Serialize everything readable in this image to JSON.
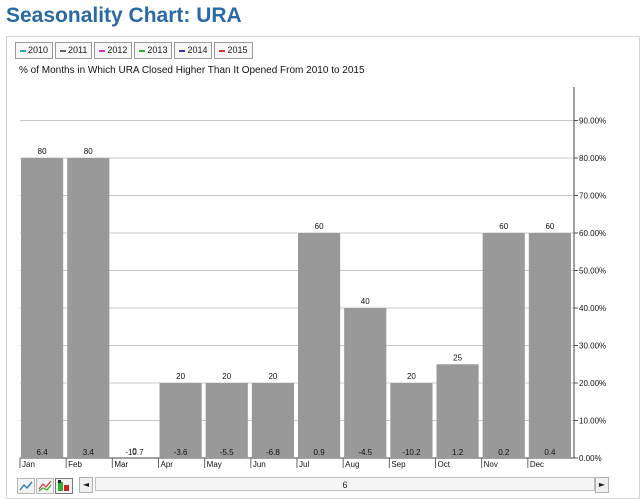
{
  "page": {
    "title": "Seasonality Chart: URA"
  },
  "legend": [
    {
      "label": "2010",
      "color": "#2aa8a8"
    },
    {
      "label": "2011",
      "color": "#666666"
    },
    {
      "label": "2012",
      "color": "#cc33cc"
    },
    {
      "label": "2013",
      "color": "#33aa33"
    },
    {
      "label": "2014",
      "color": "#3333aa"
    },
    {
      "label": "2015",
      "color": "#cc3333"
    }
  ],
  "chart_data": {
    "type": "bar",
    "subtitle": "% of Months in Which URA Closed Higher Than It Opened From 2010 to 2015",
    "categories": [
      "Jan",
      "Feb",
      "Mar",
      "Apr",
      "May",
      "Jun",
      "Jul",
      "Aug",
      "Sep",
      "Oct",
      "Nov",
      "Dec"
    ],
    "values": [
      80,
      80,
      0,
      20,
      20,
      20,
      60,
      40,
      20,
      25,
      60,
      60
    ],
    "value_labels": [
      "80",
      "80",
      "0",
      "20",
      "20",
      "20",
      "60",
      "40",
      "20",
      "25",
      "60",
      "60"
    ],
    "bottom_labels": [
      "6.4",
      "3.4",
      "-10.7",
      "-3.6",
      "-5.5",
      "-6.8",
      "0.9",
      "-4.5",
      "-10.2",
      "1.2",
      "0.2",
      "0.4"
    ],
    "y_ticks": [
      "0.00%",
      "10.00%",
      "20.00%",
      "30.00%",
      "40.00%",
      "50.00%",
      "60.00%",
      "70.00%",
      "80.00%",
      "90.00%"
    ],
    "ylim": [
      0,
      100
    ],
    "y_axis_side": "right",
    "bar_color": "#999999",
    "grid": true
  },
  "toolbar": {
    "scroll_left": "◄",
    "scroll_right": "►",
    "scroll_value": "6",
    "icons": [
      "line-chart-icon",
      "mixed-chart-icon",
      "bar-chart-icon"
    ]
  }
}
